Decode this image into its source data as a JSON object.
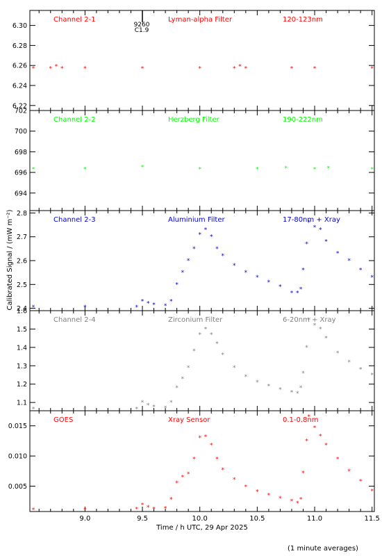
{
  "ylabel": "Calibrated Signal / (mW m⁻²)",
  "xlabel": "Time / h UTC, 29 Apr 2025",
  "footnote": "(1 minute averages)",
  "marker": {
    "class": "9260",
    "grade": "C1.9",
    "x": 9.5
  },
  "x_ticks": [
    "9.0",
    "9.5",
    "10.0",
    "10.5",
    "11.0",
    "11.5"
  ],
  "colors": {
    "red": "#ff0000",
    "green": "#00ff00",
    "blue": "#0000cc",
    "gray": "#808080"
  },
  "chart_data": [
    {
      "type": "scatter",
      "channel": "Channel 2-1",
      "filter": "Lyman-alpha Filter",
      "band": "120-123nm",
      "color": "#ff0000",
      "xlim": [
        8.52,
        11.52
      ],
      "ylim": [
        6.215,
        6.315
      ],
      "yticks": [
        "6.22",
        "6.24",
        "6.26",
        "6.28",
        "6.30"
      ],
      "x": [
        8.55,
        8.7,
        8.75,
        8.8,
        9.0,
        9.5,
        10.0,
        10.3,
        10.35,
        10.4,
        10.8,
        11.0,
        11.5
      ],
      "y": [
        6.257,
        6.257,
        6.259,
        6.257,
        6.257,
        6.257,
        6.257,
        6.257,
        6.259,
        6.257,
        6.257,
        6.257,
        6.257
      ]
    },
    {
      "type": "scatter",
      "channel": "Channel 2-2",
      "filter": "Herzberg Filter",
      "band": "190-222nm",
      "color": "#00ff00",
      "xlim": [
        8.52,
        11.52
      ],
      "ylim": [
        692.3,
        702.0
      ],
      "yticks": [
        "694",
        "696",
        "698",
        "700",
        "702"
      ],
      "x": [
        8.55,
        9.0,
        9.5,
        10.0,
        10.5,
        10.75,
        11.0,
        11.12,
        11.5
      ],
      "y": [
        696.3,
        696.3,
        696.5,
        696.3,
        696.3,
        696.4,
        696.3,
        696.4,
        696.3
      ]
    },
    {
      "type": "scatter",
      "channel": "Channel 2-3",
      "filter": "Aluminium Filter",
      "band": "17-80nm + Xray",
      "color": "#0000cc",
      "xlim": [
        8.52,
        11.52
      ],
      "ylim": [
        2.39,
        2.81
      ],
      "yticks": [
        "2.4",
        "2.5",
        "2.6",
        "2.7",
        "2.8"
      ],
      "x": [
        8.55,
        9.0,
        9.45,
        9.5,
        9.55,
        9.6,
        9.7,
        9.75,
        9.8,
        9.85,
        9.9,
        9.95,
        10.0,
        10.05,
        10.1,
        10.15,
        10.2,
        10.3,
        10.4,
        10.5,
        10.6,
        10.7,
        10.8,
        10.85,
        10.88,
        10.9,
        10.93,
        10.95,
        11.0,
        11.05,
        11.1,
        11.2,
        11.3,
        11.4,
        11.5
      ],
      "y": [
        2.405,
        2.405,
        2.405,
        2.43,
        2.42,
        2.415,
        2.41,
        2.43,
        2.5,
        2.55,
        2.6,
        2.65,
        2.71,
        2.73,
        2.7,
        2.65,
        2.62,
        2.58,
        2.55,
        2.53,
        2.51,
        2.49,
        2.465,
        2.465,
        2.48,
        2.56,
        2.67,
        2.76,
        2.74,
        2.73,
        2.68,
        2.63,
        2.6,
        2.56,
        2.53
      ]
    },
    {
      "type": "scatter",
      "channel": "Channel 2-4",
      "filter": "Zirconium Filter",
      "band": "6-20nm + Xray",
      "color": "#808080",
      "xlim": [
        8.52,
        11.52
      ],
      "ylim": [
        1.055,
        1.6
      ],
      "yticks": [
        "1.1",
        "1.2",
        "1.3",
        "1.4",
        "1.5",
        "1.6"
      ],
      "x": [
        8.55,
        9.0,
        9.45,
        9.5,
        9.55,
        9.6,
        9.7,
        9.75,
        9.8,
        9.85,
        9.9,
        9.95,
        10.0,
        10.05,
        10.1,
        10.15,
        10.2,
        10.3,
        10.4,
        10.5,
        10.6,
        10.7,
        10.8,
        10.85,
        10.88,
        10.9,
        10.93,
        10.95,
        11.0,
        11.05,
        11.1,
        11.2,
        11.3,
        11.4,
        11.5
      ],
      "y": [
        1.065,
        1.065,
        1.065,
        1.1,
        1.085,
        1.075,
        1.07,
        1.1,
        1.18,
        1.23,
        1.29,
        1.38,
        1.47,
        1.5,
        1.47,
        1.42,
        1.36,
        1.29,
        1.24,
        1.21,
        1.19,
        1.17,
        1.155,
        1.15,
        1.18,
        1.26,
        1.4,
        1.55,
        1.52,
        1.5,
        1.45,
        1.37,
        1.32,
        1.28,
        1.25
      ]
    },
    {
      "type": "scatter",
      "channel": "GOES",
      "filter": "Xray Sensor",
      "band": "0.1-0.8nm",
      "color": "#ff0000",
      "xlim": [
        8.52,
        11.52
      ],
      "ylim": [
        0.0008,
        0.0175
      ],
      "yticks": [
        "0.005",
        "0.010",
        "0.015"
      ],
      "x": [
        8.55,
        9.0,
        9.45,
        9.5,
        9.55,
        9.6,
        9.7,
        9.75,
        9.8,
        9.85,
        9.9,
        9.95,
        10.0,
        10.05,
        10.1,
        10.15,
        10.2,
        10.3,
        10.4,
        10.5,
        10.6,
        10.7,
        10.8,
        10.85,
        10.88,
        10.9,
        10.93,
        10.95,
        11.0,
        11.05,
        11.1,
        11.2,
        11.3,
        11.4,
        11.5
      ],
      "y": [
        0.0011,
        0.0011,
        0.0012,
        0.0019,
        0.0015,
        0.0012,
        0.0013,
        0.0028,
        0.0055,
        0.0065,
        0.007,
        0.0095,
        0.013,
        0.0132,
        0.0118,
        0.0095,
        0.0077,
        0.0061,
        0.0049,
        0.0041,
        0.0035,
        0.003,
        0.0025,
        0.0022,
        0.0028,
        0.0072,
        0.0125,
        0.0165,
        0.0147,
        0.0133,
        0.0118,
        0.0095,
        0.0075,
        0.0058,
        0.0042
      ]
    }
  ]
}
